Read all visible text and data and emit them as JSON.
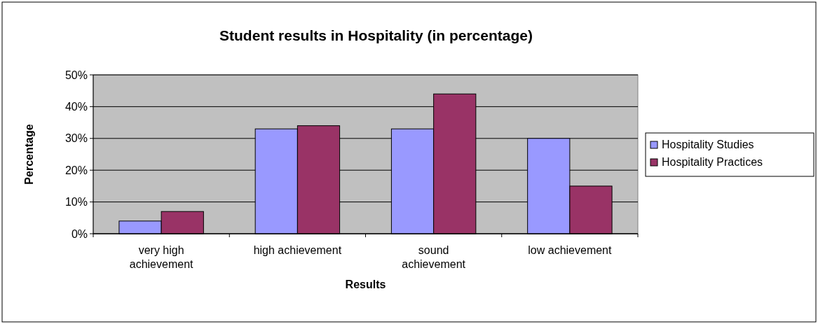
{
  "chart_data": {
    "type": "bar",
    "title": "Student results in Hospitality (in percentage)",
    "xlabel": "Results",
    "ylabel": "Percentage",
    "categories": [
      "very high achievement",
      "high achievement",
      "sound achievement",
      "low achievement"
    ],
    "series": [
      {
        "name": "Hospitality Studies",
        "color": "#9999ff",
        "values": [
          4,
          33,
          33,
          30
        ]
      },
      {
        "name": "Hospitality Practices",
        "color": "#993366",
        "values": [
          7,
          34,
          44,
          15
        ]
      }
    ],
    "ylim": [
      0,
      50
    ],
    "yticks": [
      {
        "value": 0,
        "label": "0%"
      },
      {
        "value": 10,
        "label": "10%"
      },
      {
        "value": 20,
        "label": "20%"
      },
      {
        "value": 30,
        "label": "30%"
      },
      {
        "value": 40,
        "label": "40%"
      },
      {
        "value": 50,
        "label": "50%"
      }
    ],
    "grid": "y",
    "legend": "right"
  }
}
